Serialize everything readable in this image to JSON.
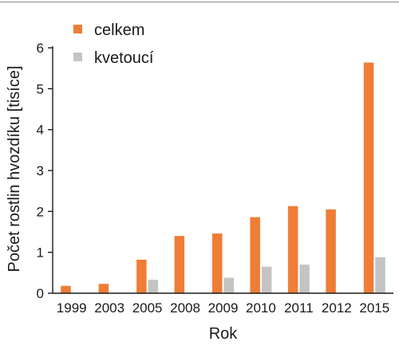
{
  "chart_data": {
    "type": "bar",
    "title": "",
    "xlabel": "Rok",
    "ylabel": "Počet rostlin hvozdíku [tisíce]",
    "ylim": [
      0,
      6
    ],
    "yticks": [
      "0",
      "1",
      "2",
      "3",
      "4",
      "5",
      "6"
    ],
    "categories": [
      "1999",
      "2003",
      "2005",
      "2008",
      "2009",
      "2010",
      "2011",
      "2012",
      "2015"
    ],
    "series": [
      {
        "name": "celkem",
        "color": "#ef7d35",
        "values": [
          0.18,
          0.23,
          0.82,
          1.4,
          1.46,
          1.86,
          2.13,
          2.05,
          5.64
        ]
      },
      {
        "name": "kvetoucí",
        "color": "#c4c4c4",
        "values": [
          0,
          0,
          0.33,
          0,
          0.38,
          0.65,
          0.7,
          0,
          0.88
        ]
      }
    ],
    "legend_position": "top-left",
    "grid": false
  }
}
